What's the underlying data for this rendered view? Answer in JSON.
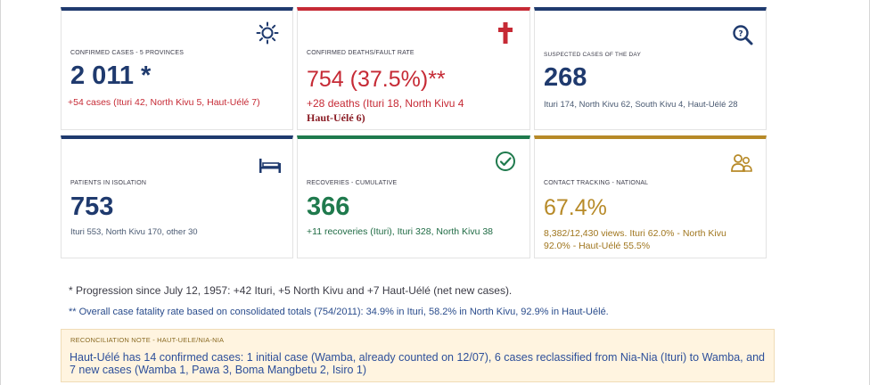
{
  "cards": {
    "confirmed": {
      "label": "CONFIRMED CASES - 5 PROVINCES",
      "value": "2 011 *",
      "detail": "+54 cases (Ituri 42, North Kivu 5, Haut-Uélé 7)",
      "icon": "sun-icon"
    },
    "deaths": {
      "label": "CONFIRMED DEATHS/FAULT RATE",
      "value": "754 (37.5%)**",
      "detail_line1": "+28 deaths (Ituri 18, North Kivu 4",
      "detail_line2": "Haut-Uélé 6)",
      "icon": "cross-icon"
    },
    "suspected": {
      "label": "SUSPECTED CASES OF THE DAY",
      "value": "268",
      "detail": "Ituri 174, North Kivu 62, South Kivu 4, Haut-Uélé 28",
      "icon": "magnifier-icon"
    },
    "isolation": {
      "label": "PATIENTS IN ISOLATION",
      "value": "753",
      "detail": "Ituri 553, North Kivu 170, other 30",
      "icon": "bed-icon"
    },
    "recoveries": {
      "label": "RECOVERIES - CUMULATIVE",
      "value": "366",
      "detail": "+11 recoveries (Ituri), Ituri 328, North Kivu 38",
      "icon": "check-circle-icon"
    },
    "contact": {
      "label": "CONTACT TRACKING - NATIONAL",
      "value": "67.4%",
      "detail_line1": "8,382/12,430 views. Ituri 62.0% - North Kivu",
      "detail_line2": "92.0% - Haut-Uélé 55.5%",
      "icon": "people-icon"
    }
  },
  "notes": {
    "progression": "* Progression since July 12, 1957: +42 Ituri, +5 North Kivu and +7 Haut-Uélé (net new cases).",
    "fatality": "** Overall case fatality rate based on consolidated totals (754/2011): 34.9% in Ituri, 58.2% in North Kivu, 92.9% in Haut-Uélé."
  },
  "reconciliation": {
    "label": "RECONCILIATION NOTE - HAUT-UELE/NIA-NIA",
    "text": "Haut-Uélé has 14 confirmed cases: 1 initial case (Wamba, already counted on 12/07), 6 cases reclassified from Nia-Nia (Ituri) to Wamba, and 7 new cases (Wamba 1, Pawa 3, Boma Mangbetu 2, Isiro 1)"
  },
  "colors": {
    "navy": "#1f3a6e",
    "red": "#c62a35",
    "green": "#1f7a4d",
    "gold": "#b78a28"
  }
}
